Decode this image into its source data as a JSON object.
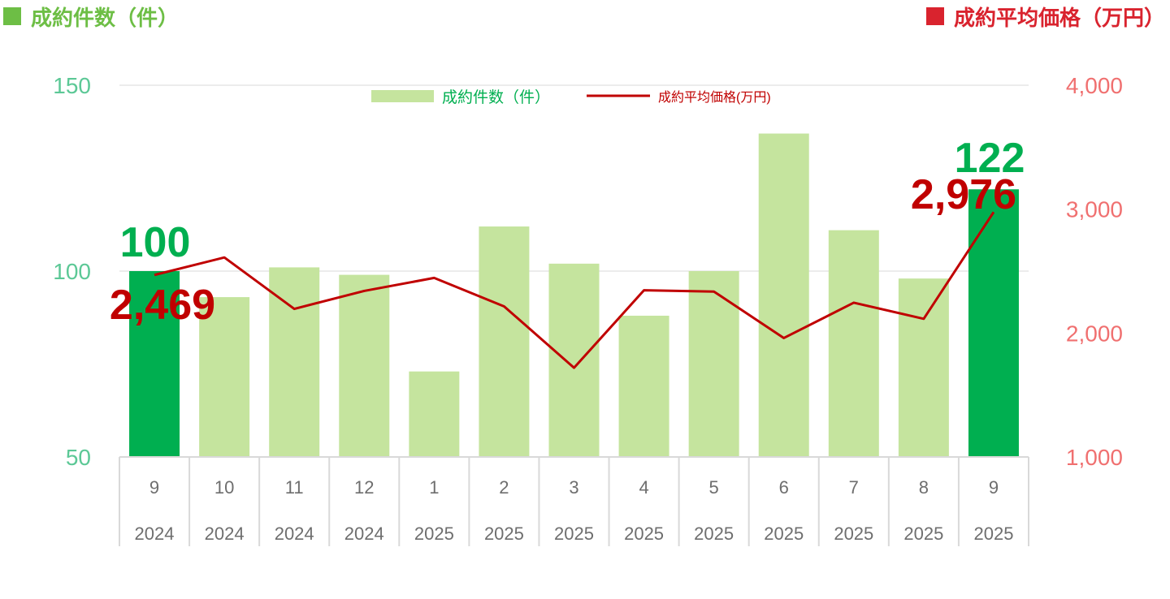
{
  "headers": {
    "left": "成約件数（件）",
    "right": "成約平均価格（万円）"
  },
  "colors": {
    "count_header": "#6DBE45",
    "price_header": "#D9232E",
    "bar_light": "#C5E49E",
    "bar_dark": "#00AF50",
    "line": "#C00000",
    "left_axis": "#5CC896",
    "right_axis": "#F07070",
    "count_label": "#00AF50",
    "price_label": "#C00000"
  },
  "chart_data": {
    "type": "bar",
    "categories": [
      {
        "month": "9",
        "year": "2024"
      },
      {
        "month": "10",
        "year": "2024"
      },
      {
        "month": "11",
        "year": "2024"
      },
      {
        "month": "12",
        "year": "2024"
      },
      {
        "month": "1",
        "year": "2025"
      },
      {
        "month": "2",
        "year": "2025"
      },
      {
        "month": "3",
        "year": "2025"
      },
      {
        "month": "4",
        "year": "2025"
      },
      {
        "month": "5",
        "year": "2025"
      },
      {
        "month": "6",
        "year": "2025"
      },
      {
        "month": "7",
        "year": "2025"
      },
      {
        "month": "8",
        "year": "2025"
      },
      {
        "month": "9",
        "year": "2025"
      }
    ],
    "series": [
      {
        "name": "成約件数（件）",
        "type": "bar",
        "axis": "left",
        "values": [
          100,
          93,
          101,
          99,
          73,
          112,
          102,
          88,
          100,
          137,
          111,
          98,
          122
        ],
        "highlight": [
          0,
          12
        ]
      },
      {
        "name": "成約平均価格(万円)",
        "type": "line",
        "axis": "right",
        "values": [
          2469,
          2610,
          2195,
          2340,
          2445,
          2215,
          1720,
          2345,
          2335,
          1960,
          2245,
          2115,
          2976
        ]
      }
    ],
    "left_axis": {
      "min": 50,
      "max": 150,
      "ticks": [
        "50",
        "100",
        "150"
      ]
    },
    "right_axis": {
      "min": 1000,
      "max": 4000,
      "ticks": [
        "1,000",
        "2,000",
        "3,000",
        "4,000"
      ]
    },
    "data_labels": [
      {
        "series": 0,
        "index": 0,
        "text": "100"
      },
      {
        "series": 0,
        "index": 12,
        "text": "122"
      },
      {
        "series": 1,
        "index": 0,
        "text": "2,469"
      },
      {
        "series": 1,
        "index": 12,
        "text": "2,976"
      }
    ],
    "gridlines": true,
    "legend": "top-center"
  }
}
